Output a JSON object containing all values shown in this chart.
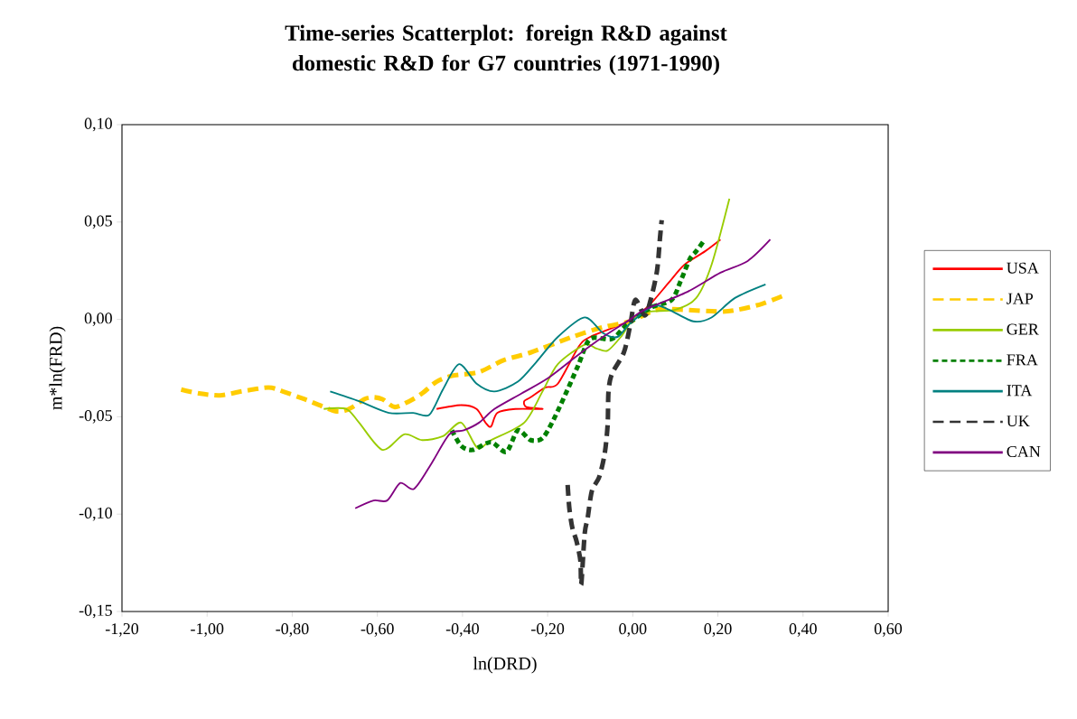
{
  "chart_data": {
    "type": "line",
    "title": "Time-series Scatterplot: foreign R&D against domestic R&D for G7 countries (1971-1990)",
    "xlabel": "ln(DRD)",
    "ylabel": "m*ln(FRD)",
    "xlim": [
      -1.2,
      0.6
    ],
    "ylim": [
      -0.15,
      0.1
    ],
    "xticks": [
      {
        "value": -1.2,
        "label": "-1,20"
      },
      {
        "value": -1.0,
        "label": "-1,00"
      },
      {
        "value": -0.8,
        "label": "-0,80"
      },
      {
        "value": -0.6,
        "label": "-0,60"
      },
      {
        "value": -0.4,
        "label": "-0,40"
      },
      {
        "value": -0.2,
        "label": "-0,20"
      },
      {
        "value": 0,
        "label": "0,00"
      },
      {
        "value": 0.2,
        "label": "0,20"
      },
      {
        "value": 0.4,
        "label": "0,40"
      },
      {
        "value": 0.6,
        "label": "0,60"
      }
    ],
    "yticks": [
      {
        "value": -0.15,
        "label": "-0,15"
      },
      {
        "value": -0.1,
        "label": "-0,10"
      },
      {
        "value": -0.05,
        "label": "-0,05"
      },
      {
        "value": 0,
        "label": "0,00"
      },
      {
        "value": 0.05,
        "label": "0,05"
      },
      {
        "value": 0.1,
        "label": "0,10"
      }
    ],
    "legend": "right",
    "marker": "none",
    "grid": false,
    "series": [
      {
        "name": "USA",
        "color": "#ff0000",
        "line_style": "solid",
        "x": [
          -0.461,
          -0.403,
          -0.367,
          -0.346,
          -0.333,
          -0.318,
          -0.276,
          -0.212,
          -0.25,
          -0.255,
          -0.24,
          -0.206,
          -0.176,
          -0.127,
          -0.1,
          -0.02,
          0.015,
          0.042,
          0.085,
          0.121,
          0.17,
          0.206
        ],
        "values": [
          -0.046,
          -0.044,
          -0.046,
          -0.053,
          -0.055,
          -0.048,
          -0.046,
          -0.046,
          -0.045,
          -0.042,
          -0.04,
          -0.035,
          -0.033,
          -0.014,
          -0.009,
          -0.002,
          0.003,
          0.008,
          0.019,
          0.028,
          0.035,
          0.041
        ]
      },
      {
        "name": "JAP",
        "color": "#ffcc00",
        "line_style": "dashed",
        "x": [
          -1.061,
          -1.019,
          -0.97,
          -0.919,
          -0.856,
          -0.822,
          -0.771,
          -0.737,
          -0.701,
          -0.679,
          -0.658,
          -0.631,
          -0.61,
          -0.588,
          -0.559,
          -0.525,
          -0.495,
          -0.461,
          -0.425,
          -0.361,
          -0.304,
          -0.24,
          -0.142,
          -0.07,
          -0.006,
          0.057,
          0.113,
          0.206,
          0.248,
          0.304,
          0.352
        ],
        "values": [
          -0.036,
          -0.038,
          -0.039,
          -0.037,
          -0.035,
          -0.037,
          -0.041,
          -0.044,
          -0.047,
          -0.047,
          -0.045,
          -0.041,
          -0.04,
          -0.041,
          -0.045,
          -0.042,
          -0.038,
          -0.032,
          -0.029,
          -0.027,
          -0.021,
          -0.017,
          -0.009,
          -0.004,
          -0.001,
          0.005,
          0.005,
          0.004,
          0.005,
          0.008,
          0.012
        ]
      },
      {
        "name": "GER",
        "color": "#99cc00",
        "line_style": "solid",
        "x": [
          -0.726,
          -0.673,
          -0.643,
          -0.588,
          -0.537,
          -0.495,
          -0.446,
          -0.403,
          -0.365,
          -0.333,
          -0.255,
          -0.212,
          -0.176,
          -0.113,
          -0.085,
          -0.059,
          -0.028,
          0.015,
          0.1,
          0.149,
          0.185,
          0.227
        ],
        "values": [
          -0.046,
          -0.046,
          -0.053,
          -0.067,
          -0.059,
          -0.062,
          -0.06,
          -0.053,
          -0.066,
          -0.062,
          -0.053,
          -0.037,
          -0.023,
          -0.013,
          -0.015,
          -0.016,
          -0.009,
          0.003,
          0.005,
          0.011,
          0.028,
          0.062
        ]
      },
      {
        "name": "FRA",
        "color": "#008000",
        "line_style": "dotted",
        "x": [
          -0.425,
          -0.403,
          -0.376,
          -0.333,
          -0.297,
          -0.27,
          -0.24,
          -0.212,
          -0.185,
          -0.149,
          -0.127,
          -0.1,
          -0.049,
          -0.015,
          0.042,
          0.091,
          0.113,
          0.134,
          0.149,
          0.166
        ],
        "values": [
          -0.057,
          -0.065,
          -0.067,
          -0.063,
          -0.068,
          -0.057,
          -0.062,
          -0.061,
          -0.051,
          -0.034,
          -0.023,
          -0.01,
          -0.01,
          -0.003,
          0.006,
          0.01,
          0.02,
          0.031,
          0.035,
          0.04
        ]
      },
      {
        "name": "ITA",
        "color": "#008080",
        "line_style": "solid",
        "x": [
          -0.711,
          -0.643,
          -0.573,
          -0.516,
          -0.478,
          -0.446,
          -0.408,
          -0.367,
          -0.325,
          -0.27,
          -0.227,
          -0.176,
          -0.113,
          -0.07,
          -0.036,
          -0.006,
          0.049,
          0.085,
          0.142,
          0.185,
          0.24,
          0.312
        ],
        "values": [
          -0.037,
          -0.042,
          -0.048,
          -0.048,
          -0.049,
          -0.036,
          -0.023,
          -0.033,
          -0.037,
          -0.032,
          -0.022,
          -0.009,
          0.001,
          -0.007,
          -0.009,
          -0.002,
          0.007,
          0.005,
          -0.001,
          0.001,
          0.011,
          0.018
        ]
      },
      {
        "name": "UK",
        "color": "#333333",
        "line_style": "dashed",
        "x": [
          -0.153,
          -0.149,
          -0.142,
          -0.132,
          -0.123,
          -0.121,
          -0.113,
          -0.106,
          -0.096,
          -0.079,
          -0.066,
          -0.059,
          -0.057,
          -0.049,
          -0.021,
          -0.006,
          0.006,
          0.028,
          0.042,
          0.057,
          0.064,
          0.068
        ],
        "values": [
          -0.085,
          -0.097,
          -0.107,
          -0.114,
          -0.124,
          -0.136,
          -0.11,
          -0.102,
          -0.088,
          -0.081,
          -0.069,
          -0.054,
          -0.037,
          -0.028,
          -0.017,
          -0.003,
          0.01,
          0.002,
          0.01,
          0.025,
          0.042,
          0.051
        ]
      },
      {
        "name": "CAN",
        "color": "#800080",
        "line_style": "solid",
        "x": [
          -0.652,
          -0.609,
          -0.577,
          -0.546,
          -0.514,
          -0.473,
          -0.431,
          -0.397,
          -0.361,
          -0.325,
          -0.261,
          -0.198,
          -0.127,
          -0.07,
          -0.006,
          0.028,
          0.127,
          0.206,
          0.27,
          0.323
        ],
        "values": [
          -0.097,
          -0.093,
          -0.093,
          -0.084,
          -0.087,
          -0.074,
          -0.059,
          -0.057,
          -0.053,
          -0.046,
          -0.038,
          -0.03,
          -0.018,
          -0.009,
          0.0,
          0.005,
          0.014,
          0.024,
          0.03,
          0.041
        ]
      }
    ]
  }
}
